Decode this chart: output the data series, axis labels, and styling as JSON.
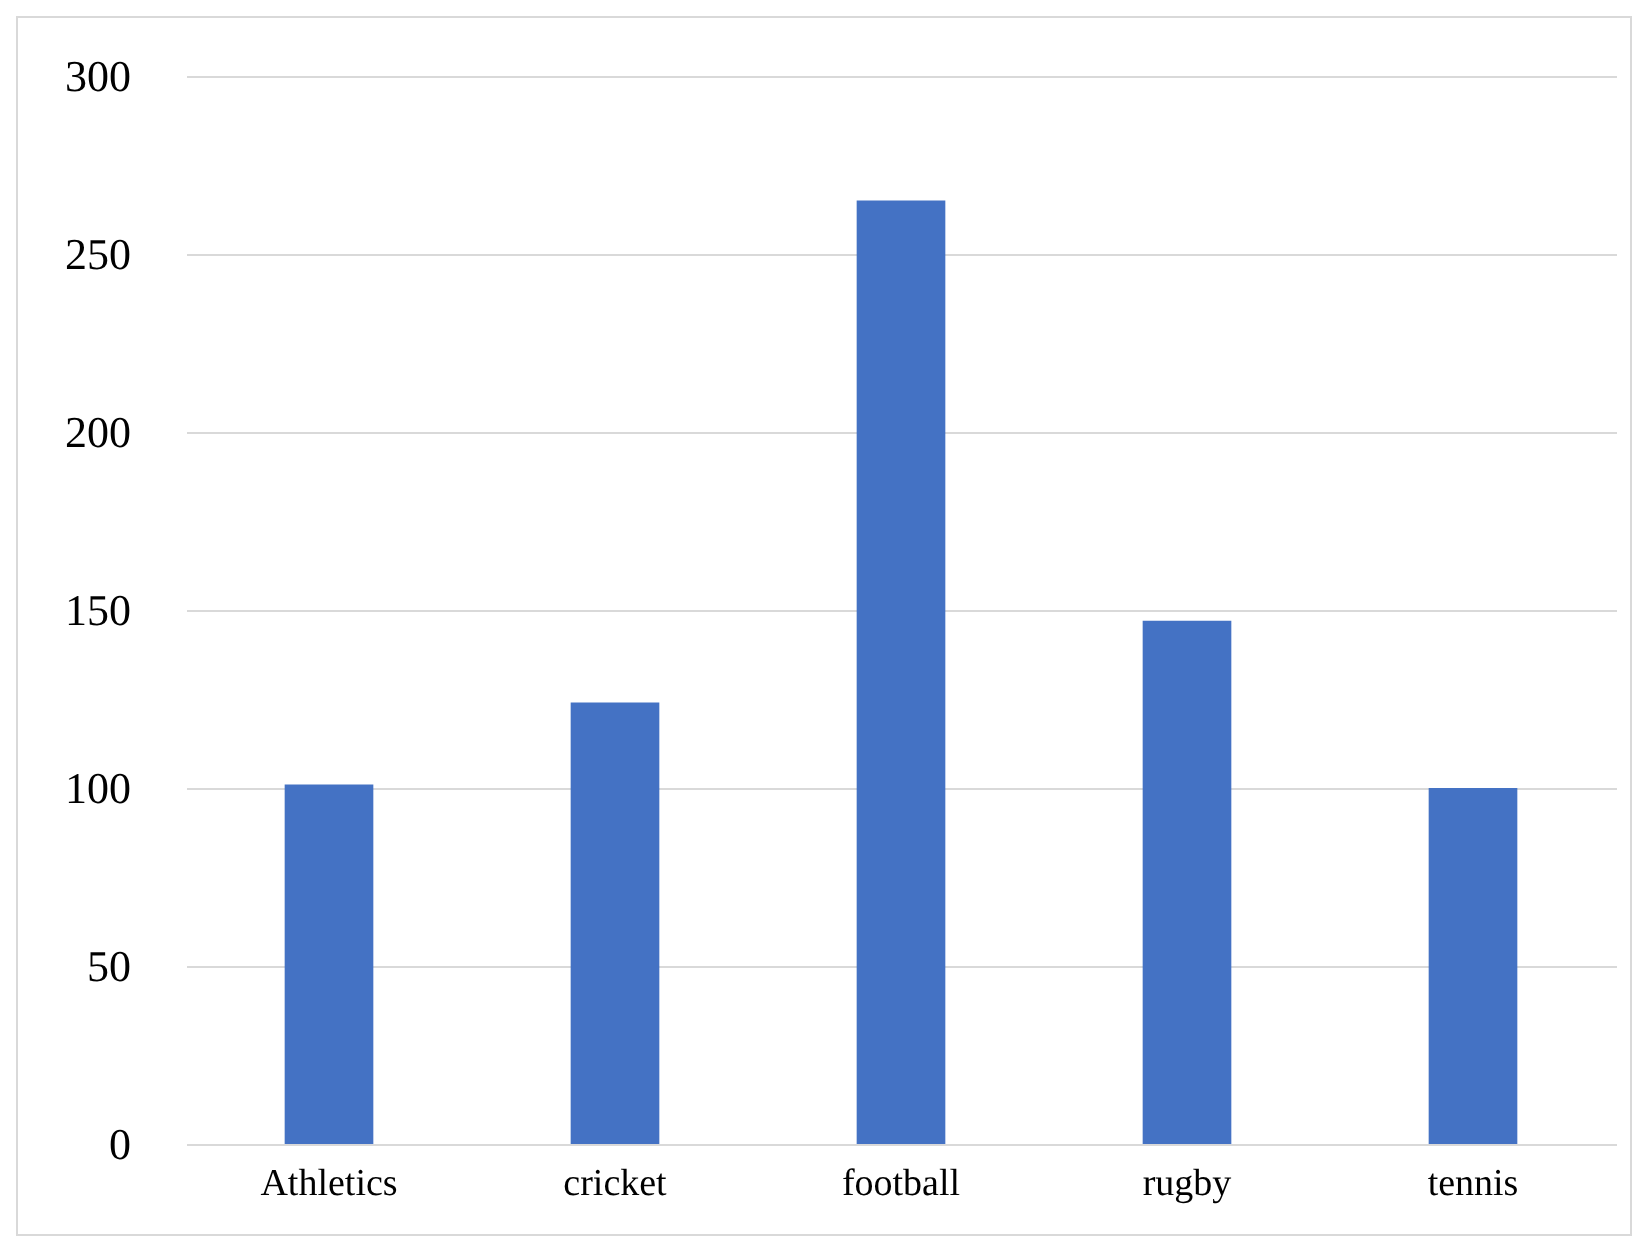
{
  "chart_data": {
    "type": "bar",
    "categories": [
      "Athletics",
      "cricket",
      "football",
      "rugby",
      "tennis"
    ],
    "values": [
      101,
      124,
      265,
      147,
      100
    ],
    "color": "#4472c4",
    "ylim": [
      0,
      300
    ],
    "yticks": [
      0,
      50,
      100,
      150,
      200,
      250,
      300
    ],
    "grid": "y"
  }
}
